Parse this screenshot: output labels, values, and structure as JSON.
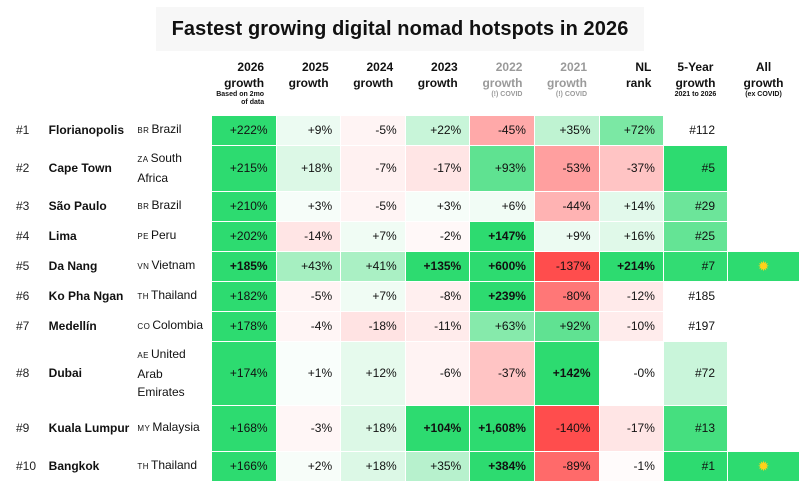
{
  "title": "Fastest growing digital nomad hotspots in 2026",
  "chart_data": {
    "type": "table",
    "title": "Fastest growing digital nomad hotspots in 2026",
    "columns": [
      {
        "key": "g2026",
        "label": "2026",
        "label2": "growth",
        "note": "Based on 2mo of data",
        "muted": false
      },
      {
        "key": "g2025",
        "label": "2025",
        "label2": "growth",
        "note": "",
        "muted": false
      },
      {
        "key": "g2024",
        "label": "2024",
        "label2": "growth",
        "note": "",
        "muted": false
      },
      {
        "key": "g2023",
        "label": "2023",
        "label2": "growth",
        "note": "",
        "muted": false
      },
      {
        "key": "g2022",
        "label": "2022",
        "label2": "growth",
        "note": "(!) COVID",
        "muted": true
      },
      {
        "key": "g2021",
        "label": "2021",
        "label2": "growth",
        "note": "(!) COVID",
        "muted": true
      },
      {
        "key": "nl",
        "label": "NL",
        "label2": "rank",
        "note": "",
        "muted": false
      },
      {
        "key": "ye",
        "label": "5-Year",
        "label2": "growth",
        "note": "2021 to 2026",
        "muted": false
      },
      {
        "key": "all",
        "label": "All",
        "label2": "growth",
        "note": "(ex COVID)",
        "muted": false
      }
    ],
    "rows": [
      {
        "rank": "#1",
        "city": "Florianopolis",
        "cc": "BR",
        "country": "Brazil",
        "cells": [
          {
            "t": "+222%",
            "bg": "#2ddb70",
            "b": false
          },
          {
            "t": "+9%",
            "bg": "#ecfbf2",
            "b": false
          },
          {
            "t": "-5%",
            "bg": "#fff4f4",
            "b": false
          },
          {
            "t": "+22%",
            "bg": "#c8f5d9",
            "b": false
          },
          {
            "t": "-45%",
            "bg": "#ffa9a9",
            "b": false
          },
          {
            "t": "+35%",
            "bg": "#bff3d2",
            "b": false
          },
          {
            "t": "+72%",
            "bg": "#7be8a4",
            "b": false
          }
        ],
        "ye": {
          "t": "#112",
          "bg": "#ffffff"
        },
        "all": {
          "t": "",
          "bg": "#ffffff"
        }
      },
      {
        "rank": "#2",
        "city": "Cape Town",
        "cc": "ZA",
        "country": "South Africa",
        "cells": [
          {
            "t": "+215%",
            "bg": "#2ddb70",
            "b": false
          },
          {
            "t": "+18%",
            "bg": "#dcf8e6",
            "b": false
          },
          {
            "t": "-7%",
            "bg": "#fff1f1",
            "b": false
          },
          {
            "t": "-17%",
            "bg": "#ffe5e5",
            "b": false
          },
          {
            "t": "+93%",
            "bg": "#5fe291",
            "b": false
          },
          {
            "t": "-53%",
            "bg": "#ff9f9f",
            "b": false
          },
          {
            "t": "-37%",
            "bg": "#ffc4c4",
            "b": false
          }
        ],
        "ye": {
          "t": "#5",
          "bg": "#2ddb70"
        },
        "all": {
          "t": "",
          "bg": "#ffffff"
        }
      },
      {
        "rank": "#3",
        "city": "São Paulo",
        "cc": "BR",
        "country": "Brazil",
        "cells": [
          {
            "t": "+210%",
            "bg": "#2ddb70",
            "b": false
          },
          {
            "t": "+3%",
            "bg": "#f6fdf9",
            "b": false
          },
          {
            "t": "-5%",
            "bg": "#fff4f4",
            "b": false
          },
          {
            "t": "+3%",
            "bg": "#f6fdf9",
            "b": false
          },
          {
            "t": "+6%",
            "bg": "#f1fcf5",
            "b": false
          },
          {
            "t": "-44%",
            "bg": "#ffb3b3",
            "b": false
          },
          {
            "t": "+14%",
            "bg": "#e2f9eb",
            "b": false
          }
        ],
        "ye": {
          "t": "#29",
          "bg": "#6ce59a"
        },
        "all": {
          "t": "",
          "bg": "#ffffff"
        }
      },
      {
        "rank": "#4",
        "city": "Lima",
        "cc": "PE",
        "country": "Peru",
        "cells": [
          {
            "t": "+202%",
            "bg": "#2ddb70",
            "b": false
          },
          {
            "t": "-14%",
            "bg": "#ffe5e5",
            "b": false
          },
          {
            "t": "+7%",
            "bg": "#f0fcf4",
            "b": false
          },
          {
            "t": "-2%",
            "bg": "#fff8f8",
            "b": false
          },
          {
            "t": "+147%",
            "bg": "#2ddb70",
            "b": true
          },
          {
            "t": "+9%",
            "bg": "#ecfbf2",
            "b": false
          },
          {
            "t": "+16%",
            "bg": "#e0f9e9",
            "b": false
          }
        ],
        "ye": {
          "t": "#25",
          "bg": "#64e495"
        },
        "all": {
          "t": "",
          "bg": "#ffffff"
        }
      },
      {
        "rank": "#5",
        "city": "Da Nang",
        "cc": "VN",
        "country": "Vietnam",
        "cells": [
          {
            "t": "+185%",
            "bg": "#2ddb70",
            "b": true
          },
          {
            "t": "+43%",
            "bg": "#a6efc1",
            "b": false
          },
          {
            "t": "+41%",
            "bg": "#aaf0c4",
            "b": false
          },
          {
            "t": "+135%",
            "bg": "#2ddb70",
            "b": true
          },
          {
            "t": "+600%",
            "bg": "#2ddb70",
            "b": true
          },
          {
            "t": "-137%",
            "bg": "#ff4d4d",
            "b": false
          },
          {
            "t": "+214%",
            "bg": "#2ddb70",
            "b": true
          }
        ],
        "ye": {
          "t": "#7",
          "bg": "#32dc73"
        },
        "all": {
          "t": "sun",
          "bg": "#2ddb70"
        }
      },
      {
        "rank": "#6",
        "city": "Ko Pha Ngan",
        "cc": "TH",
        "country": "Thailand",
        "cells": [
          {
            "t": "+182%",
            "bg": "#2ddb70",
            "b": false
          },
          {
            "t": "-5%",
            "bg": "#fff4f4",
            "b": false
          },
          {
            "t": "+7%",
            "bg": "#f0fcf4",
            "b": false
          },
          {
            "t": "-8%",
            "bg": "#ffefef",
            "b": false
          },
          {
            "t": "+239%",
            "bg": "#2ddb70",
            "b": true
          },
          {
            "t": "-80%",
            "bg": "#ff7777",
            "b": false
          },
          {
            "t": "-12%",
            "bg": "#ffeaea",
            "b": false
          }
        ],
        "ye": {
          "t": "#185",
          "bg": "#ffffff"
        },
        "all": {
          "t": "",
          "bg": "#ffffff"
        }
      },
      {
        "rank": "#7",
        "city": "Medellín",
        "cc": "CO",
        "country": "Colombia",
        "cells": [
          {
            "t": "+178%",
            "bg": "#2ddb70",
            "b": false
          },
          {
            "t": "-4%",
            "bg": "#fff5f5",
            "b": false
          },
          {
            "t": "-18%",
            "bg": "#ffe3e3",
            "b": false
          },
          {
            "t": "-11%",
            "bg": "#ffebeb",
            "b": false
          },
          {
            "t": "+63%",
            "bg": "#86eaab",
            "b": false
          },
          {
            "t": "+92%",
            "bg": "#60e292",
            "b": false
          },
          {
            "t": "-10%",
            "bg": "#ffecec",
            "b": false
          }
        ],
        "ye": {
          "t": "#197",
          "bg": "#ffffff"
        },
        "all": {
          "t": "",
          "bg": "#ffffff"
        }
      },
      {
        "rank": "#8",
        "city": "Dubai",
        "cc": "AE",
        "country": "United Arab Emirates",
        "cells": [
          {
            "t": "+174%",
            "bg": "#2ddb70",
            "b": false
          },
          {
            "t": "+1%",
            "bg": "#f9fefb",
            "b": false
          },
          {
            "t": "+12%",
            "bg": "#e6faed",
            "b": false
          },
          {
            "t": "-6%",
            "bg": "#fff3f3",
            "b": false
          },
          {
            "t": "-37%",
            "bg": "#ffc4c4",
            "b": false
          },
          {
            "t": "+142%",
            "bg": "#2ddb70",
            "b": true
          },
          {
            "t": "-0%",
            "bg": "#ffffff",
            "b": false
          }
        ],
        "ye": {
          "t": "#72",
          "bg": "#c9f5da"
        },
        "all": {
          "t": "",
          "bg": "#ffffff"
        }
      },
      {
        "rank": "#9",
        "city": "Kuala Lumpur",
        "cc": "MY",
        "country": "Malaysia",
        "cells": [
          {
            "t": "+168%",
            "bg": "#2ddb70",
            "b": false
          },
          {
            "t": "-3%",
            "bg": "#fff6f6",
            "b": false
          },
          {
            "t": "+18%",
            "bg": "#dcf8e6",
            "b": false
          },
          {
            "t": "+104%",
            "bg": "#2ddb70",
            "b": true
          },
          {
            "t": "+1,608%",
            "bg": "#2ddb70",
            "b": true
          },
          {
            "t": "-140%",
            "bg": "#ff4d4d",
            "b": false
          },
          {
            "t": "-17%",
            "bg": "#ffe5e5",
            "b": false
          }
        ],
        "ye": {
          "t": "#13",
          "bg": "#45df7f"
        },
        "all": {
          "t": "",
          "bg": "#ffffff"
        }
      },
      {
        "rank": "#10",
        "city": "Bangkok",
        "cc": "TH",
        "country": "Thailand",
        "cells": [
          {
            "t": "+166%",
            "bg": "#2ddb70",
            "b": false
          },
          {
            "t": "+2%",
            "bg": "#f7fdf9",
            "b": false
          },
          {
            "t": "+18%",
            "bg": "#dcf8e6",
            "b": false
          },
          {
            "t": "+35%",
            "bg": "#b7f1cd",
            "b": false
          },
          {
            "t": "+384%",
            "bg": "#2ddb70",
            "b": true
          },
          {
            "t": "-89%",
            "bg": "#ff6a6a",
            "b": false
          },
          {
            "t": "-1%",
            "bg": "#fffbfb",
            "b": false
          }
        ],
        "ye": {
          "t": "#1",
          "bg": "#2ddb70"
        },
        "all": {
          "t": "sun",
          "bg": "#2ddb70"
        }
      }
    ]
  }
}
